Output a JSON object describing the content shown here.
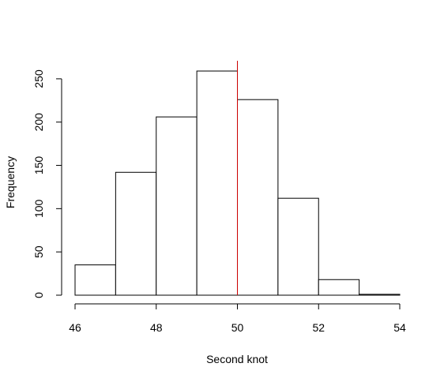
{
  "chart_data": {
    "type": "histogram",
    "title": "",
    "xlabel": "Second knot",
    "ylabel": "Frequency",
    "bins": [
      {
        "start": 46,
        "end": 47,
        "count": 35
      },
      {
        "start": 47,
        "end": 48,
        "count": 142
      },
      {
        "start": 48,
        "end": 49,
        "count": 206
      },
      {
        "start": 49,
        "end": 50,
        "count": 259
      },
      {
        "start": 50,
        "end": 51,
        "count": 226
      },
      {
        "start": 51,
        "end": 52,
        "count": 112
      },
      {
        "start": 52,
        "end": 53,
        "count": 18
      },
      {
        "start": 53,
        "end": 54,
        "count": 1
      }
    ],
    "xlim": [
      46,
      54
    ],
    "ylim": [
      0,
      270
    ],
    "x_ticks": [
      "46",
      "48",
      "50",
      "52",
      "54"
    ],
    "y_ticks": [
      "0",
      "50",
      "100",
      "150",
      "200",
      "250"
    ],
    "reference_line": {
      "x": 50,
      "color": "#cc0000"
    },
    "grid": false,
    "legend": "none"
  }
}
